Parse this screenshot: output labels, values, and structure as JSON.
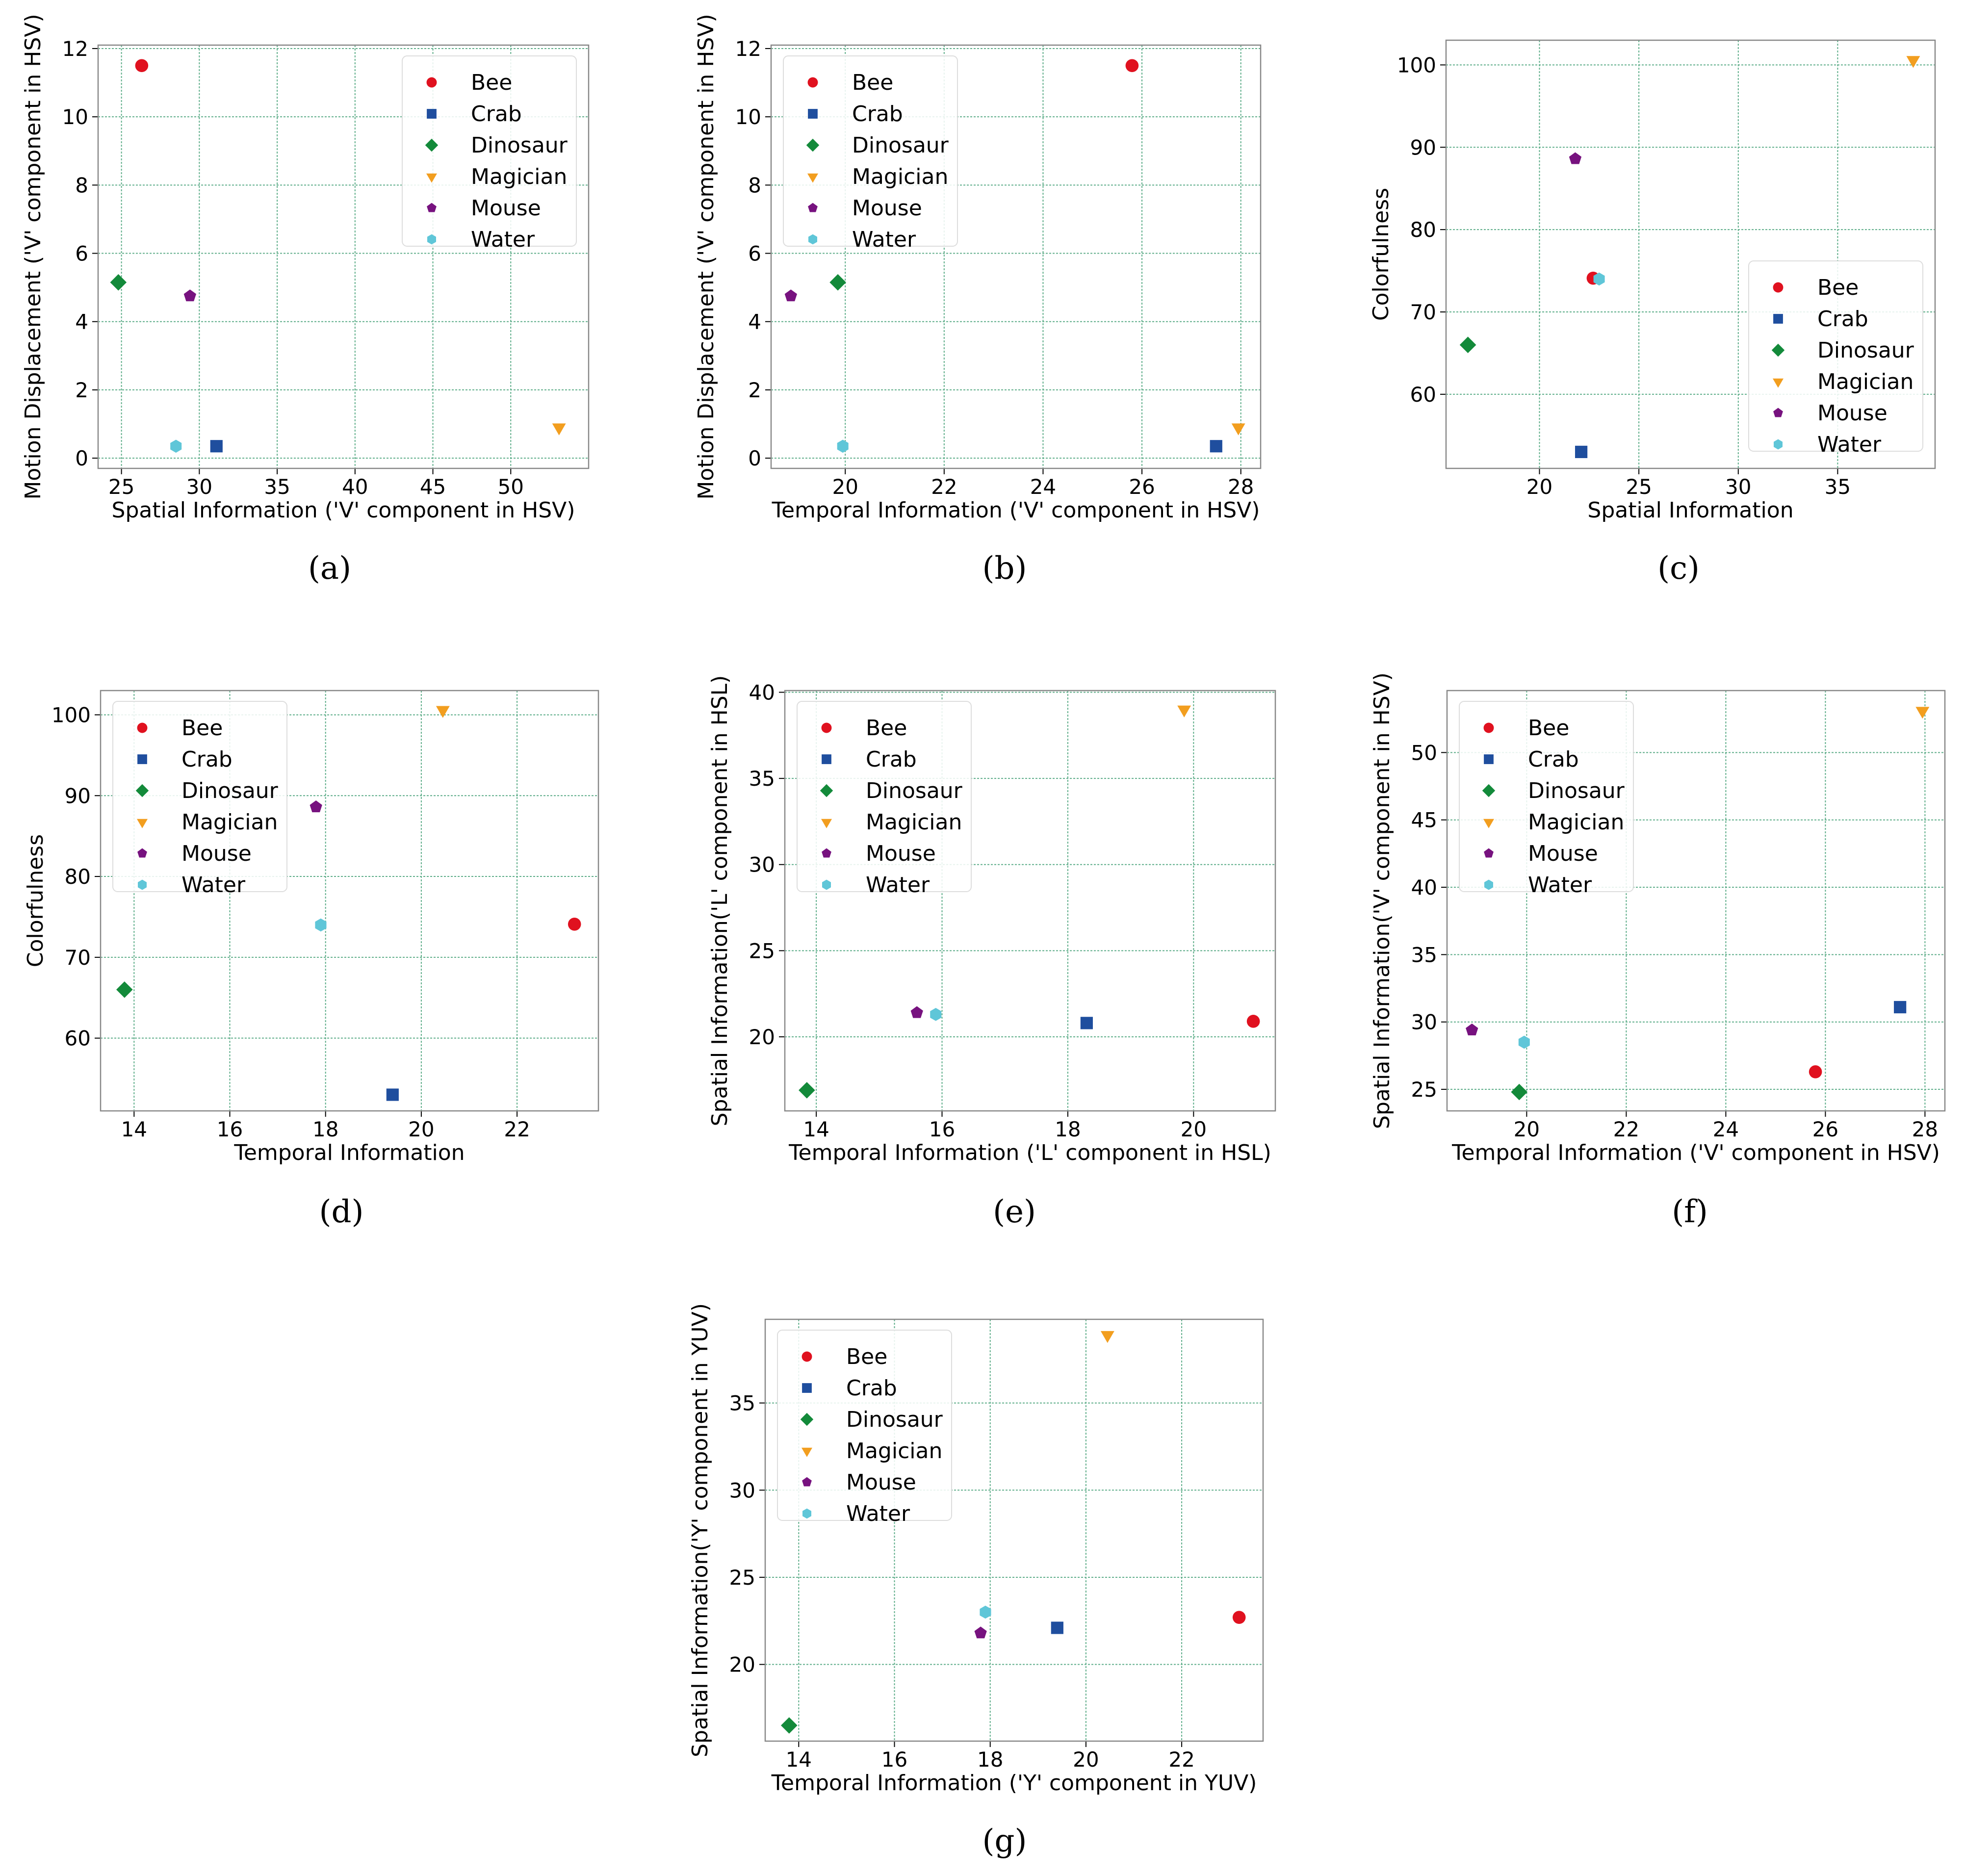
{
  "colors": {
    "Bee": "#e0111f",
    "Crab": "#1f4e9e",
    "Dinosaur": "#138a3a",
    "Magician": "#f29e1f",
    "Mouse": "#77127f",
    "Water": "#5fc6d8",
    "grid": "#5fae8a"
  },
  "chart_data": [
    {
      "id": "a",
      "caption": "(a)",
      "type": "scatter",
      "xlabel": "Spatial Information ('V' component in HSV)",
      "ylabel": "Motion Displacement ('V' component in HSV)",
      "xlim": [
        23.5,
        55
      ],
      "ylim": [
        -0.3,
        12.1
      ],
      "xticks": [
        25,
        30,
        35,
        40,
        45,
        50
      ],
      "yticks": [
        0,
        2,
        4,
        6,
        8,
        10,
        12
      ],
      "legend": "top-right",
      "series": [
        {
          "name": "Bee",
          "marker": "circle",
          "x": 26.3,
          "y": 11.5
        },
        {
          "name": "Crab",
          "marker": "square",
          "x": 31.1,
          "y": 0.35
        },
        {
          "name": "Dinosaur",
          "marker": "diamond",
          "x": 24.8,
          "y": 5.15
        },
        {
          "name": "Magician",
          "marker": "triangle-down",
          "x": 53.1,
          "y": 0.9
        },
        {
          "name": "Mouse",
          "marker": "pentagon",
          "x": 29.4,
          "y": 4.75
        },
        {
          "name": "Water",
          "marker": "hexagon",
          "x": 28.5,
          "y": 0.35
        }
      ]
    },
    {
      "id": "b",
      "caption": "(b)",
      "type": "scatter",
      "xlabel": "Temporal Information ('V' component in HSV)",
      "ylabel": "Motion Displacement ('V' component in HSV)",
      "xlim": [
        18.5,
        28.4
      ],
      "ylim": [
        -0.3,
        12.1
      ],
      "xticks": [
        20,
        22,
        24,
        26,
        28
      ],
      "yticks": [
        0,
        2,
        4,
        6,
        8,
        10,
        12
      ],
      "legend": "top-left",
      "series": [
        {
          "name": "Bee",
          "marker": "circle",
          "x": 25.8,
          "y": 11.5
        },
        {
          "name": "Crab",
          "marker": "square",
          "x": 27.5,
          "y": 0.35
        },
        {
          "name": "Dinosaur",
          "marker": "diamond",
          "x": 19.85,
          "y": 5.15
        },
        {
          "name": "Magician",
          "marker": "triangle-down",
          "x": 27.95,
          "y": 0.9
        },
        {
          "name": "Mouse",
          "marker": "pentagon",
          "x": 18.9,
          "y": 4.75
        },
        {
          "name": "Water",
          "marker": "hexagon",
          "x": 19.95,
          "y": 0.35
        }
      ]
    },
    {
      "id": "c",
      "caption": "(c)",
      "type": "scatter",
      "xlabel": "Spatial Information",
      "ylabel": "Colorfulness",
      "xlim": [
        15.3,
        39.9
      ],
      "ylim": [
        51,
        103
      ],
      "xticks": [
        20,
        25,
        30,
        35
      ],
      "yticks": [
        60,
        70,
        80,
        90,
        100
      ],
      "legend": "right",
      "series": [
        {
          "name": "Bee",
          "marker": "circle",
          "x": 22.7,
          "y": 74.1
        },
        {
          "name": "Crab",
          "marker": "square",
          "x": 22.1,
          "y": 53.0
        },
        {
          "name": "Dinosaur",
          "marker": "diamond",
          "x": 16.4,
          "y": 66.0
        },
        {
          "name": "Magician",
          "marker": "triangle-down",
          "x": 38.8,
          "y": 100.6
        },
        {
          "name": "Mouse",
          "marker": "pentagon",
          "x": 21.8,
          "y": 88.6
        },
        {
          "name": "Water",
          "marker": "hexagon",
          "x": 23.0,
          "y": 74.0
        }
      ]
    },
    {
      "id": "d",
      "caption": "(d)",
      "type": "scatter",
      "xlabel": "Temporal Information",
      "ylabel": "Colorfulness",
      "xlim": [
        13.3,
        23.7
      ],
      "ylim": [
        51,
        103
      ],
      "xticks": [
        14,
        16,
        18,
        20,
        22
      ],
      "yticks": [
        60,
        70,
        80,
        90,
        100
      ],
      "legend": "top-left",
      "series": [
        {
          "name": "Bee",
          "marker": "circle",
          "x": 23.2,
          "y": 74.1
        },
        {
          "name": "Crab",
          "marker": "square",
          "x": 19.4,
          "y": 53.0
        },
        {
          "name": "Dinosaur",
          "marker": "diamond",
          "x": 13.8,
          "y": 66.0
        },
        {
          "name": "Magician",
          "marker": "triangle-down",
          "x": 20.45,
          "y": 100.6
        },
        {
          "name": "Mouse",
          "marker": "pentagon",
          "x": 17.8,
          "y": 88.6
        },
        {
          "name": "Water",
          "marker": "hexagon",
          "x": 17.9,
          "y": 74.0
        }
      ]
    },
    {
      "id": "e",
      "caption": "(e)",
      "type": "scatter",
      "xlabel": "Temporal Information ('L' component in HSL)",
      "ylabel": "Spatial Information('L' component in HSL)",
      "xlim": [
        13.5,
        21.3
      ],
      "ylim": [
        15.7,
        40.1
      ],
      "xticks": [
        14,
        16,
        18,
        20
      ],
      "yticks": [
        20,
        25,
        30,
        35,
        40
      ],
      "legend": "top-left",
      "series": [
        {
          "name": "Bee",
          "marker": "circle",
          "x": 20.95,
          "y": 20.9
        },
        {
          "name": "Crab",
          "marker": "square",
          "x": 18.3,
          "y": 20.8
        },
        {
          "name": "Dinosaur",
          "marker": "diamond",
          "x": 13.85,
          "y": 16.9
        },
        {
          "name": "Magician",
          "marker": "triangle-down",
          "x": 19.85,
          "y": 39.0
        },
        {
          "name": "Mouse",
          "marker": "pentagon",
          "x": 15.6,
          "y": 21.4
        },
        {
          "name": "Water",
          "marker": "hexagon",
          "x": 15.9,
          "y": 21.3
        }
      ]
    },
    {
      "id": "f",
      "caption": "(f)",
      "type": "scatter",
      "xlabel": "Temporal Information ('V' component in HSV)",
      "ylabel": "Spatial Information('V' component in HSV)",
      "xlim": [
        18.4,
        28.4
      ],
      "ylim": [
        23.4,
        54.6
      ],
      "xticks": [
        20,
        22,
        24,
        26,
        28
      ],
      "yticks": [
        25,
        30,
        35,
        40,
        45,
        50
      ],
      "legend": "top-left",
      "series": [
        {
          "name": "Bee",
          "marker": "circle",
          "x": 25.8,
          "y": 26.3
        },
        {
          "name": "Crab",
          "marker": "square",
          "x": 27.5,
          "y": 31.1
        },
        {
          "name": "Dinosaur",
          "marker": "diamond",
          "x": 19.85,
          "y": 24.8
        },
        {
          "name": "Magician",
          "marker": "triangle-down",
          "x": 27.95,
          "y": 53.1
        },
        {
          "name": "Mouse",
          "marker": "pentagon",
          "x": 18.9,
          "y": 29.4
        },
        {
          "name": "Water",
          "marker": "hexagon",
          "x": 19.95,
          "y": 28.5
        }
      ]
    },
    {
      "id": "g",
      "caption": "(g)",
      "type": "scatter",
      "xlabel": "Temporal Information ('Y' component in YUV)",
      "ylabel": "Spatial Information('Y' component in YUV)",
      "xlim": [
        13.3,
        23.7
      ],
      "ylim": [
        15.6,
        39.8
      ],
      "xticks": [
        14,
        16,
        18,
        20,
        22
      ],
      "yticks": [
        20,
        25,
        30,
        35
      ],
      "legend": "top-left",
      "series": [
        {
          "name": "Bee",
          "marker": "circle",
          "x": 23.2,
          "y": 22.7
        },
        {
          "name": "Crab",
          "marker": "square",
          "x": 19.4,
          "y": 22.1
        },
        {
          "name": "Dinosaur",
          "marker": "diamond",
          "x": 13.8,
          "y": 16.5
        },
        {
          "name": "Magician",
          "marker": "triangle-down",
          "x": 20.45,
          "y": 38.9
        },
        {
          "name": "Mouse",
          "marker": "pentagon",
          "x": 17.8,
          "y": 21.8
        },
        {
          "name": "Water",
          "marker": "hexagon",
          "x": 17.9,
          "y": 23.0
        }
      ]
    }
  ]
}
